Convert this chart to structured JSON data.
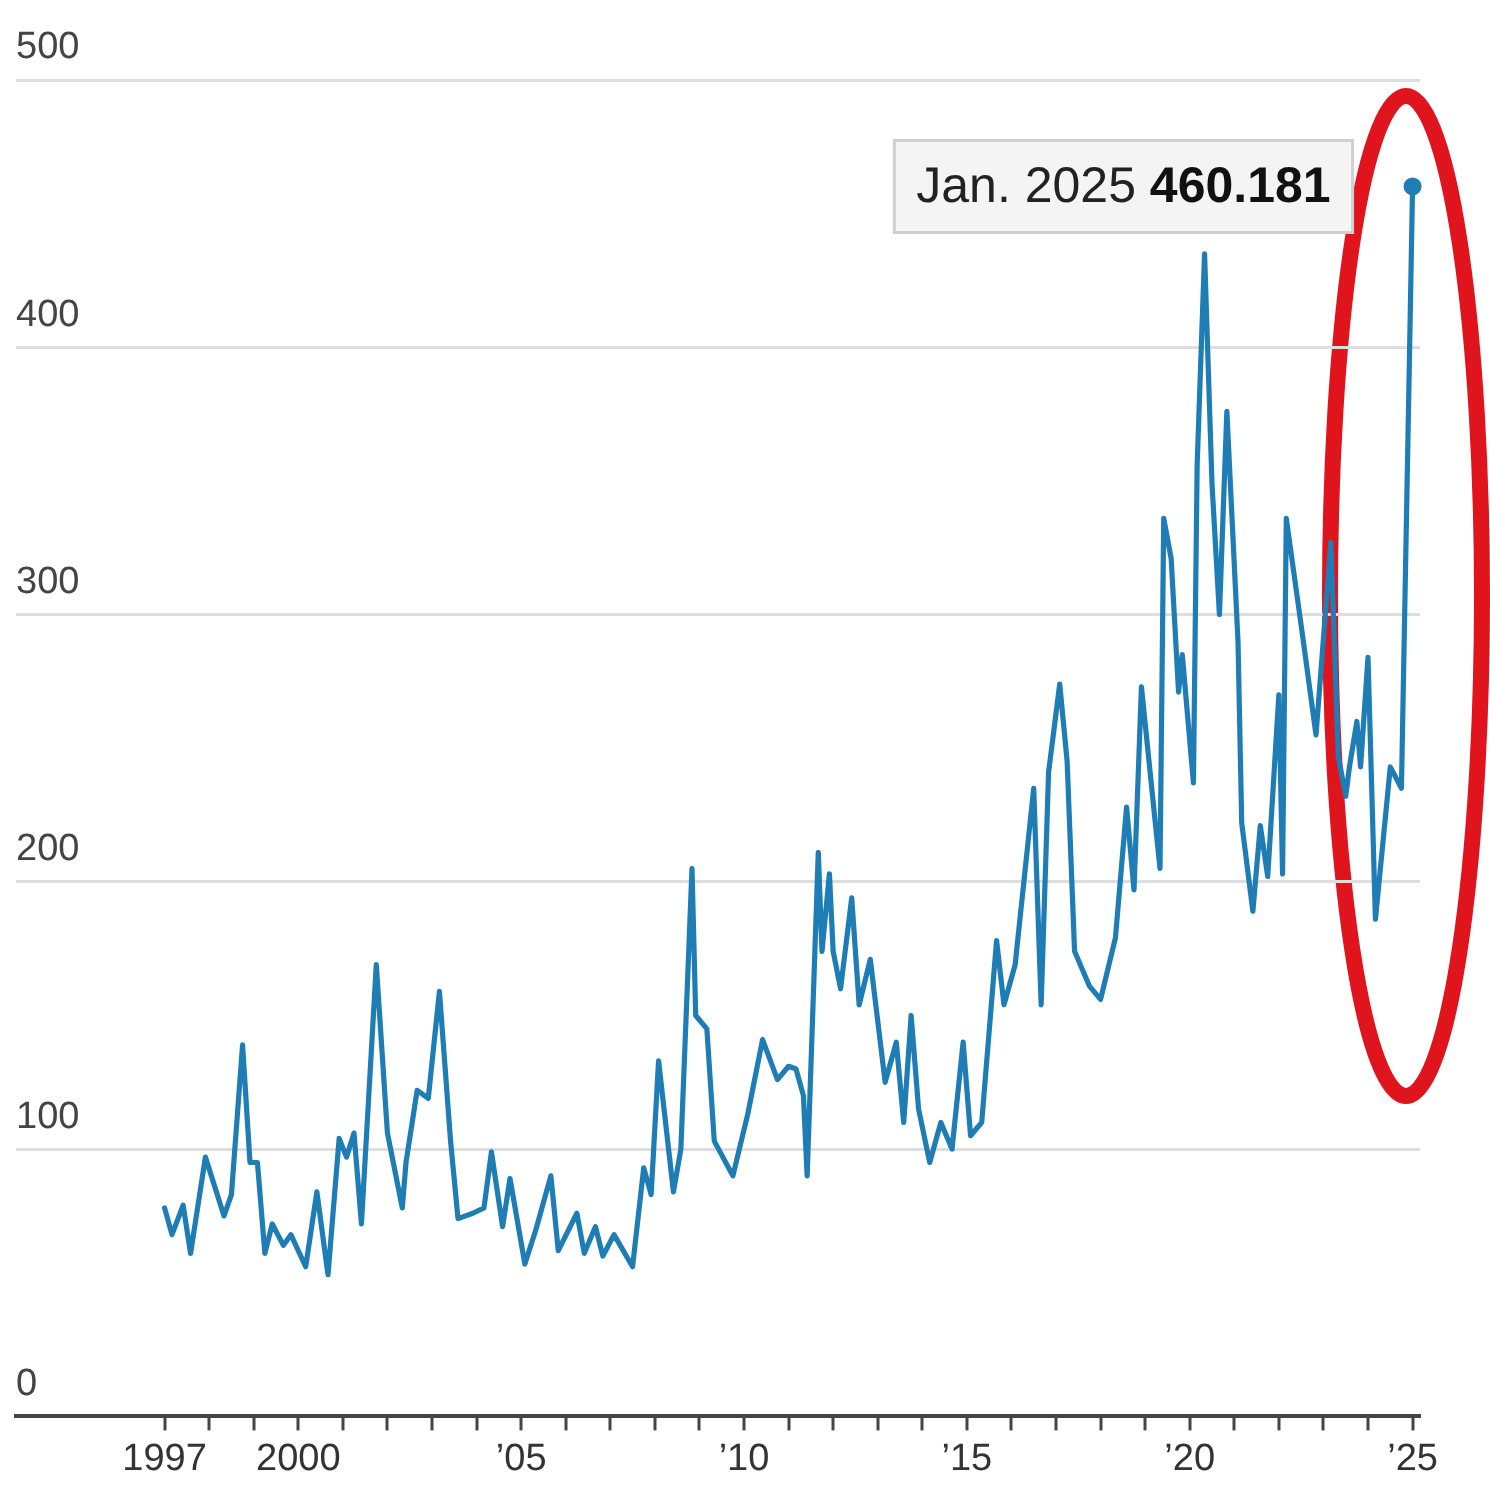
{
  "chart_data": {
    "type": "line",
    "x": [
      "1997-01",
      "1997-03",
      "1997-06",
      "1997-08",
      "1997-12",
      "1998-05",
      "1998-07",
      "1998-10",
      "1998-12",
      "1999-02",
      "1999-04",
      "1999-06",
      "1999-09",
      "1999-11",
      "2000-03",
      "2000-06",
      "2000-09",
      "2000-12",
      "2001-02",
      "2001-04",
      "2001-06",
      "2001-10",
      "2002-01",
      "2002-05",
      "2002-06",
      "2002-09",
      "2002-12",
      "2003-03",
      "2003-06",
      "2003-08",
      "2003-12",
      "2004-03",
      "2004-05",
      "2004-08",
      "2004-10",
      "2005-02",
      "2005-05",
      "2005-09",
      "2005-11",
      "2006-04",
      "2006-06",
      "2006-09",
      "2006-11",
      "2007-02",
      "2007-07",
      "2007-10",
      "2007-12",
      "2008-02",
      "2008-06",
      "2008-08",
      "2008-11",
      "2008-12",
      "2009-03",
      "2009-05",
      "2009-10",
      "2010-02",
      "2010-06",
      "2010-10",
      "2011-01",
      "2011-03",
      "2011-05",
      "2011-06",
      "2011-09",
      "2011-10",
      "2011-12",
      "2012-01",
      "2012-03",
      "2012-06",
      "2012-08",
      "2012-11",
      "2013-03",
      "2013-06",
      "2013-08",
      "2013-10",
      "2013-12",
      "2014-03",
      "2014-06",
      "2014-09",
      "2014-12",
      "2015-02",
      "2015-05",
      "2015-09",
      "2015-11",
      "2016-02",
      "2016-07",
      "2016-09",
      "2016-11",
      "2017-02",
      "2017-04",
      "2017-06",
      "2017-10",
      "2018-01",
      "2018-05",
      "2018-08",
      "2018-10",
      "2018-12",
      "2019-03",
      "2019-05",
      "2019-06",
      "2019-08",
      "2019-10",
      "2019-11",
      "2020-02",
      "2020-03",
      "2020-05",
      "2020-07",
      "2020-09",
      "2020-11",
      "2021-02",
      "2021-03",
      "2021-06",
      "2021-08",
      "2021-10",
      "2022-01",
      "2022-02",
      "2022-03",
      "2022-07",
      "2022-11",
      "2023-03",
      "2023-05",
      "2023-07",
      "2023-08",
      "2023-10",
      "2023-11",
      "2024-01",
      "2024-03",
      "2024-07",
      "2024-10",
      "2024-12",
      "2025-01"
    ],
    "series": [
      {
        "color": "#1f7db5",
        "values": [
          78,
          68,
          79,
          61,
          97,
          75,
          83,
          139,
          95,
          95,
          61,
          72,
          64,
          68,
          56,
          84,
          53,
          104,
          97,
          106,
          72,
          169,
          106,
          78,
          95,
          122,
          119,
          159,
          103,
          74,
          76,
          78,
          99,
          71,
          89,
          57,
          70,
          90,
          62,
          76,
          61,
          71,
          60,
          68,
          56,
          93,
          83,
          133,
          84,
          100,
          205,
          150,
          145,
          103,
          90,
          113,
          141,
          126,
          131,
          130,
          120,
          90,
          211,
          174,
          203,
          174,
          160,
          194,
          154,
          171,
          125,
          140,
          110,
          150,
          115,
          95,
          110,
          100,
          140,
          105,
          110,
          178,
          154,
          169,
          235,
          154,
          241,
          274,
          245,
          174,
          161,
          156,
          179,
          228,
          197,
          273,
          232,
          205,
          336,
          321,
          271,
          285,
          237,
          356,
          435,
          349,
          300,
          376,
          290,
          222,
          189,
          221,
          202,
          270,
          203,
          336,
          296,
          255,
          327,
          247,
          232,
          243,
          260,
          243,
          284,
          186,
          243,
          235,
          384,
          460.181
        ]
      }
    ],
    "xlim": [
      "1993-09",
      "2025-03"
    ],
    "xticks": [
      {
        "value": "1997",
        "label": "1997"
      },
      {
        "value": "1998",
        "label": null
      },
      {
        "value": "1999",
        "label": null
      },
      {
        "value": "2000",
        "label": "2000"
      },
      {
        "value": "2001",
        "label": null
      },
      {
        "value": "2002",
        "label": null
      },
      {
        "value": "2003",
        "label": null
      },
      {
        "value": "2004",
        "label": null
      },
      {
        "value": "2005",
        "label": "’05"
      },
      {
        "value": "2006",
        "label": null
      },
      {
        "value": "2007",
        "label": null
      },
      {
        "value": "2008",
        "label": null
      },
      {
        "value": "2009",
        "label": null
      },
      {
        "value": "2010",
        "label": "’10"
      },
      {
        "value": "2011",
        "label": null
      },
      {
        "value": "2012",
        "label": null
      },
      {
        "value": "2013",
        "label": null
      },
      {
        "value": "2014",
        "label": null
      },
      {
        "value": "2015",
        "label": "’15"
      },
      {
        "value": "2016",
        "label": null
      },
      {
        "value": "2017",
        "label": null
      },
      {
        "value": "2018",
        "label": null
      },
      {
        "value": "2019",
        "label": null
      },
      {
        "value": "2020",
        "label": "’20"
      },
      {
        "value": "2021",
        "label": null
      },
      {
        "value": "2022",
        "label": null
      },
      {
        "value": "2023",
        "label": null
      },
      {
        "value": "2024",
        "label": null
      },
      {
        "value": "2025",
        "label": "’25"
      }
    ],
    "ylim": [
      0,
      500
    ],
    "yticks": [
      0,
      100,
      200,
      300,
      400,
      500
    ],
    "grid": "y",
    "legend": false,
    "annotations": [
      {
        "text": "Jan. 2025 460.181",
        "x": "2025-01",
        "y": 460.181
      }
    ]
  }
}
